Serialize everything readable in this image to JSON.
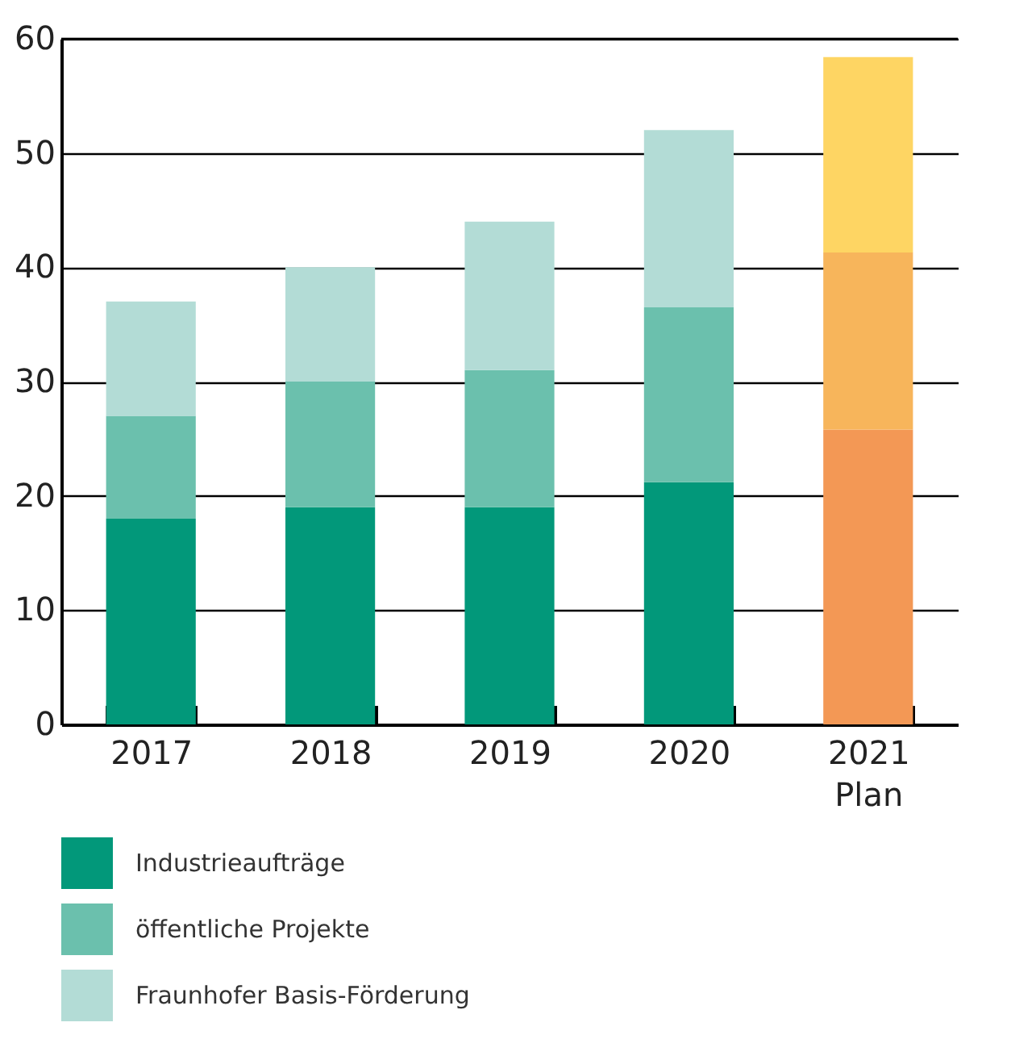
{
  "chart_data": {
    "type": "bar",
    "stacked": true,
    "categories": [
      "2017",
      "2018",
      "2019",
      "2020",
      "2021\nPlan"
    ],
    "series": [
      {
        "name": "Industrieaufträge",
        "color": "#02987a",
        "colors": [
          "#02987a",
          "#02987a",
          "#02987a",
          "#02987a",
          "#f39855"
        ],
        "values": [
          18,
          19,
          19,
          21.2,
          25.8
        ]
      },
      {
        "name": "öffentliche Projekte",
        "color": "#6bc0ad",
        "colors": [
          "#6bc0ad",
          "#6bc0ad",
          "#6bc0ad",
          "#6bc0ad",
          "#f7b55b"
        ],
        "values": [
          9,
          11,
          12,
          15.3,
          15.5
        ]
      },
      {
        "name": "Fraunhofer Basis-Förderung",
        "color": "#b3dcd6",
        "colors": [
          "#b3dcd6",
          "#b3dcd6",
          "#b3dcd6",
          "#b3dcd6",
          "#fed563"
        ],
        "values": [
          10,
          10,
          13,
          15.5,
          17.1
        ]
      }
    ],
    "ylim": [
      0,
      60
    ],
    "yticks": [
      0,
      10,
      20,
      30,
      40,
      50,
      60
    ],
    "grid": "y",
    "legend": "bottom left"
  }
}
